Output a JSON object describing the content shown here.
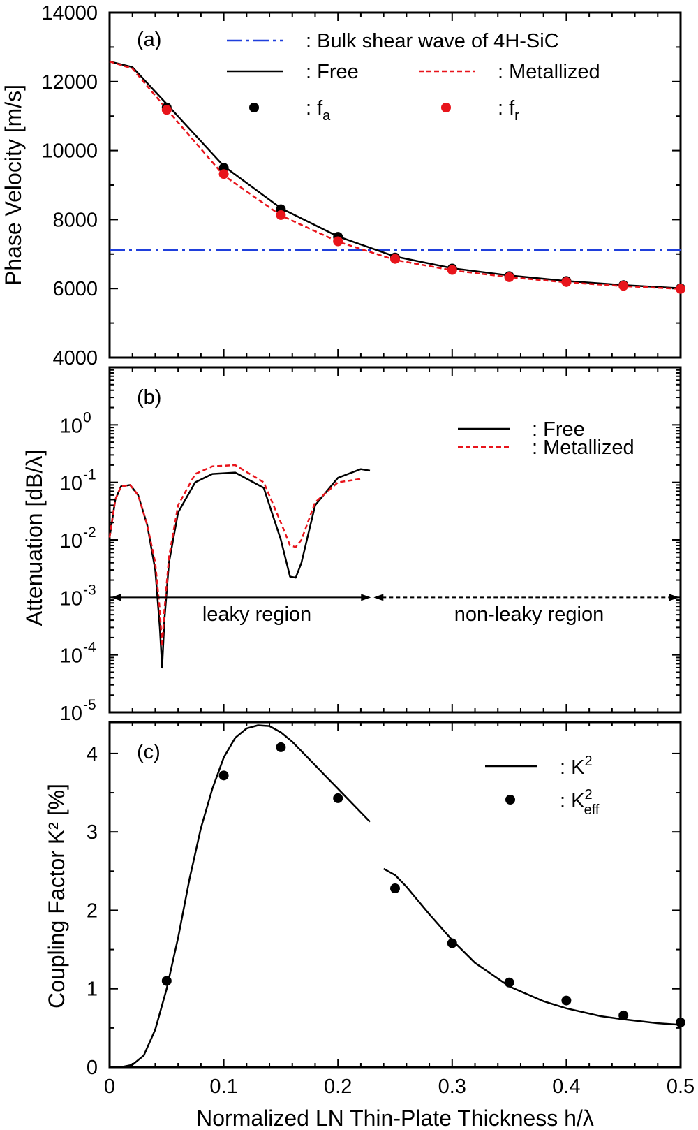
{
  "chart_data": [
    {
      "type": "line",
      "panel_label": "(a)",
      "ylabel": "Phase Velocity [m/s]",
      "xlim": [
        0,
        0.5
      ],
      "ylim": [
        4000,
        14000
      ],
      "yticks": [
        {
          "v": 4000,
          "label": "4000"
        },
        {
          "v": 6000,
          "label": "6000"
        },
        {
          "v": 8000,
          "label": "8000"
        },
        {
          "v": 10000,
          "label": "10000"
        },
        {
          "v": 12000,
          "label": "12000"
        },
        {
          "v": 14000,
          "label": "14000"
        }
      ],
      "legend": {
        "bulk": ": Bulk  shear  wave  of  4H-SiC",
        "free": ": Free",
        "metal": ": Metallized",
        "fa_prefix": ": f",
        "fa_sub": "a",
        "fr_prefix": ": f",
        "fr_sub": "r"
      },
      "colors": {
        "bulk": "#1f3fdc",
        "free": "#000000",
        "metal": "#e8141b",
        "fa": "#000000",
        "fr": "#e8141b"
      },
      "series": [
        {
          "key": "bulk",
          "x": [
            0,
            0.5
          ],
          "values": [
            7120,
            7120
          ]
        },
        {
          "key": "free",
          "x": [
            0,
            0.02,
            0.05,
            0.1,
            0.15,
            0.2,
            0.25,
            0.3,
            0.35,
            0.4,
            0.45,
            0.5
          ],
          "values": [
            12580,
            12420,
            11350,
            9550,
            8330,
            7510,
            6930,
            6590,
            6380,
            6220,
            6100,
            6010
          ]
        },
        {
          "key": "metal",
          "x": [
            0,
            0.02,
            0.05,
            0.1,
            0.15,
            0.2,
            0.25,
            0.3,
            0.35,
            0.4,
            0.45,
            0.5
          ],
          "values": [
            12580,
            12380,
            11200,
            9280,
            8120,
            7360,
            6830,
            6530,
            6330,
            6180,
            6070,
            5990
          ]
        },
        {
          "key": "fa",
          "x": [
            0.05,
            0.1,
            0.15,
            0.2,
            0.25,
            0.3,
            0.35,
            0.4,
            0.45,
            0.5
          ],
          "values": [
            11250,
            9500,
            8300,
            7500,
            6900,
            6580,
            6360,
            6220,
            6100,
            6010
          ]
        },
        {
          "key": "fr",
          "x": [
            0.05,
            0.1,
            0.15,
            0.2,
            0.25,
            0.3,
            0.35,
            0.4,
            0.45,
            0.5
          ],
          "values": [
            11180,
            9320,
            8130,
            7370,
            6860,
            6540,
            6330,
            6190,
            6080,
            5990
          ]
        }
      ]
    },
    {
      "type": "line",
      "panel_label": "(b)",
      "ylabel": "Attenuation  [dB/λ]",
      "xlim": [
        0,
        0.5
      ],
      "ylog": true,
      "ylim_exp": [
        -5,
        1
      ],
      "yticks": [
        {
          "e": -5,
          "label": "-5"
        },
        {
          "e": -4,
          "label": "-4"
        },
        {
          "e": -3,
          "label": "-3"
        },
        {
          "e": -2,
          "label": "-2"
        },
        {
          "e": -1,
          "label": "-1"
        },
        {
          "e": 0,
          "label": "0"
        }
      ],
      "legend": {
        "free": ": Free",
        "metal": ": Metallized"
      },
      "regions": {
        "leaky": "leaky  region",
        "nonleaky": "non-leaky  region",
        "boundary_x": 0.23,
        "level": 0.001
      },
      "colors": {
        "free": "#000000",
        "metal": "#e8141b",
        "region_line": "#000000"
      },
      "series": [
        {
          "key": "free",
          "x": [
            0.0,
            0.005,
            0.01,
            0.018,
            0.025,
            0.033,
            0.04,
            0.044,
            0.046,
            0.048,
            0.052,
            0.06,
            0.075,
            0.09,
            0.11,
            0.135,
            0.15,
            0.158,
            0.163,
            0.168,
            0.18,
            0.2,
            0.22,
            0.228
          ],
          "values": [
            0.011,
            0.05,
            0.085,
            0.09,
            0.06,
            0.018,
            0.003,
            0.0003,
            6e-05,
            0.0004,
            0.004,
            0.03,
            0.1,
            0.14,
            0.148,
            0.08,
            0.01,
            0.0023,
            0.0022,
            0.004,
            0.04,
            0.12,
            0.17,
            0.16
          ]
        },
        {
          "key": "metal",
          "x": [
            0.0,
            0.005,
            0.01,
            0.018,
            0.025,
            0.033,
            0.04,
            0.044,
            0.046,
            0.048,
            0.052,
            0.06,
            0.075,
            0.09,
            0.11,
            0.135,
            0.15,
            0.158,
            0.163,
            0.168,
            0.18,
            0.2,
            0.22
          ],
          "values": [
            0.011,
            0.05,
            0.085,
            0.09,
            0.06,
            0.018,
            0.004,
            0.0006,
            0.00014,
            0.0006,
            0.005,
            0.04,
            0.14,
            0.19,
            0.2,
            0.1,
            0.02,
            0.008,
            0.0075,
            0.01,
            0.045,
            0.1,
            0.115
          ]
        }
      ]
    },
    {
      "type": "line",
      "panel_label": "(c)",
      "ylabel": "Coupling  Factor  K² [%]",
      "xlabel": "Normalized  LN  Thin-Plate  Thickness  h/λ",
      "xlim": [
        0,
        0.5
      ],
      "ylim": [
        0,
        4.4
      ],
      "xticks": [
        {
          "v": 0,
          "label": "0"
        },
        {
          "v": 0.1,
          "label": "0.1"
        },
        {
          "v": 0.2,
          "label": "0.2"
        },
        {
          "v": 0.3,
          "label": "0.3"
        },
        {
          "v": 0.4,
          "label": "0.4"
        },
        {
          "v": 0.5,
          "label": "0.5"
        }
      ],
      "yticks": [
        {
          "v": 0,
          "label": "0"
        },
        {
          "v": 1,
          "label": "1"
        },
        {
          "v": 2,
          "label": "2"
        },
        {
          "v": 3,
          "label": "3"
        },
        {
          "v": 4,
          "label": "4"
        }
      ],
      "legend": {
        "k2": ": K",
        "k2_sup": "2",
        "keff": ": K",
        "keff_sup": "2",
        "keff_sub": "eff"
      },
      "colors": {
        "k2": "#000000",
        "keff": "#000000"
      },
      "series": [
        {
          "key": "k2_seg1",
          "x": [
            0.01,
            0.02,
            0.03,
            0.04,
            0.05,
            0.06,
            0.07,
            0.08,
            0.09,
            0.1,
            0.11,
            0.12,
            0.13,
            0.14,
            0.15,
            0.16,
            0.17,
            0.18,
            0.19,
            0.2,
            0.21,
            0.22,
            0.228
          ],
          "values": [
            0.0,
            0.03,
            0.15,
            0.48,
            1.0,
            1.65,
            2.4,
            3.05,
            3.55,
            3.95,
            4.2,
            4.32,
            4.36,
            4.35,
            4.27,
            4.15,
            4.0,
            3.85,
            3.7,
            3.55,
            3.4,
            3.25,
            3.13
          ]
        },
        {
          "key": "k2_seg2",
          "x": [
            0.24,
            0.25,
            0.26,
            0.28,
            0.3,
            0.32,
            0.35,
            0.38,
            0.4,
            0.43,
            0.45,
            0.48,
            0.5
          ],
          "values": [
            2.53,
            2.45,
            2.3,
            1.95,
            1.62,
            1.33,
            1.03,
            0.84,
            0.75,
            0.65,
            0.61,
            0.56,
            0.54
          ]
        },
        {
          "key": "keff",
          "x": [
            0.05,
            0.1,
            0.15,
            0.2,
            0.25,
            0.3,
            0.35,
            0.4,
            0.45,
            0.5
          ],
          "values": [
            1.1,
            3.72,
            4.08,
            3.43,
            2.28,
            1.58,
            1.08,
            0.85,
            0.66,
            0.57
          ]
        }
      ]
    }
  ]
}
